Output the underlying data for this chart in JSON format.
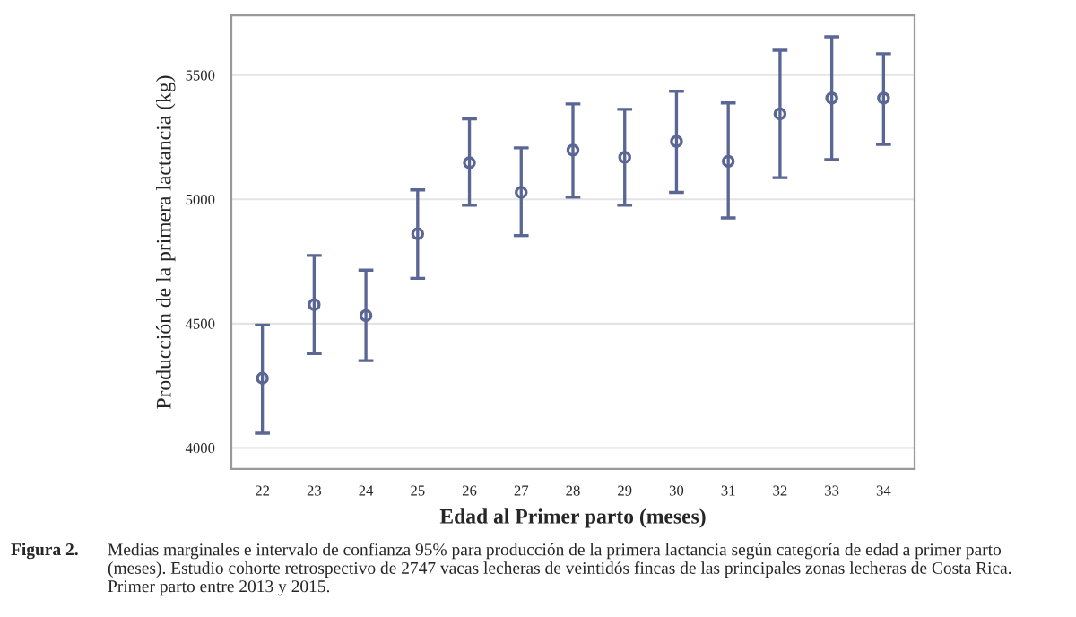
{
  "chart_data": {
    "type": "scatter",
    "xlabel": "Edad al Primer parto (meses)",
    "ylabel": "Producción de la primera lactancia (kg)",
    "categories": [
      "22",
      "23",
      "24",
      "25",
      "26",
      "27",
      "28",
      "29",
      "30",
      "31",
      "32",
      "33",
      "34"
    ],
    "series": [
      {
        "color": "#5a6694",
        "values": [
          4280,
          4576,
          4532,
          4861,
          5147,
          5028,
          5198,
          5169,
          5233,
          5153,
          5344,
          5407,
          5407
        ],
        "errors": [
          [
            4059,
            4494
          ],
          [
            4379,
            4774
          ],
          [
            4351,
            4715
          ],
          [
            4682,
            5038
          ],
          [
            4976,
            5324
          ],
          [
            4854,
            5207
          ],
          [
            5009,
            5384
          ],
          [
            4976,
            5362
          ],
          [
            5028,
            5435
          ],
          [
            4925,
            5388
          ],
          [
            5087,
            5600
          ],
          [
            5160,
            5654
          ],
          [
            5221,
            5586
          ]
        ]
      }
    ],
    "ylim": [
      3915,
      5740
    ],
    "yticks": [
      4000,
      4500,
      5000,
      5500
    ],
    "grid": "y",
    "marker": "circle",
    "annotations": [
      "Figura 2.",
      "Medias marginales e intervalo de confianza 95% para producción de la primera lactancia según categoría de edad a primer parto (meses). Estudio cohorte retrospectivo de 2747 vacas lecheras de veintidós fincas de las principales zonas lecheras de Costa Rica. Primer parto entre 2013 y 2015."
    ]
  }
}
